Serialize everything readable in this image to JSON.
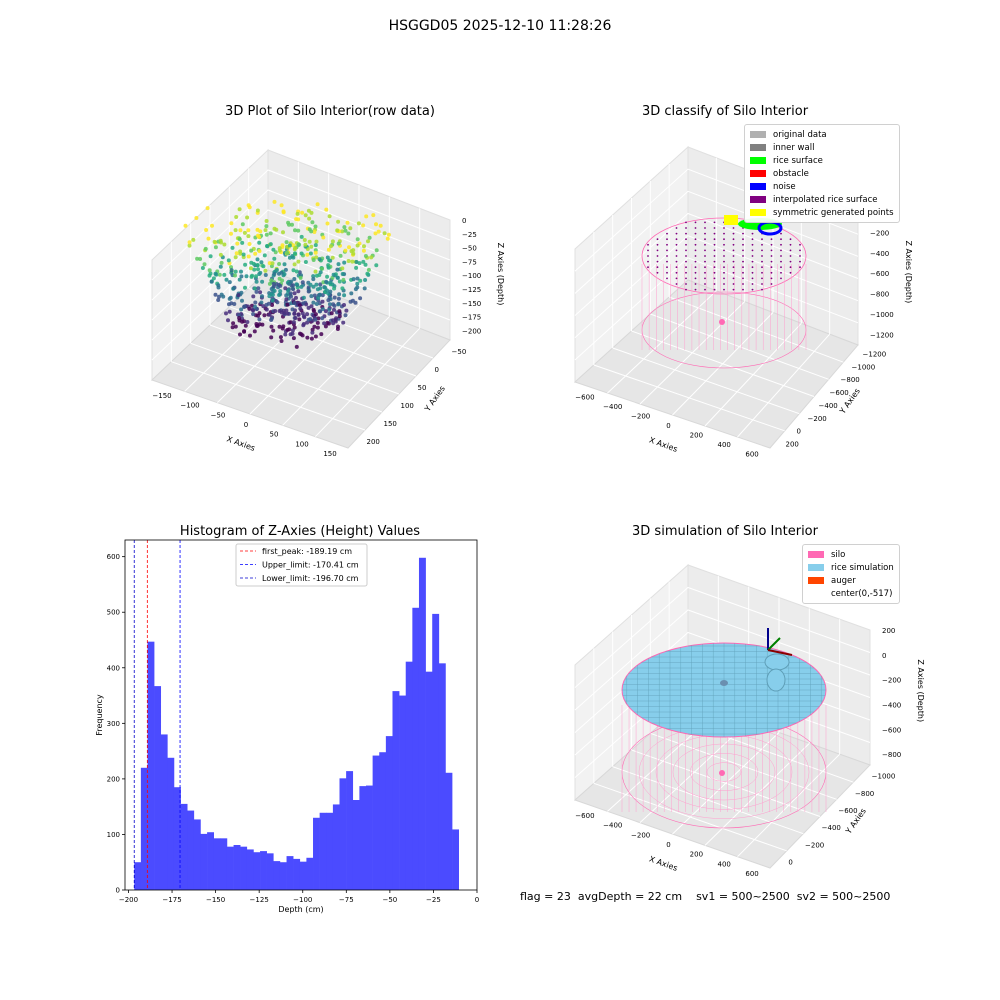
{
  "suptitle": "HSGGD05 2025-12-10 11:28:26",
  "panels": {
    "raw": {
      "title": "3D Plot of Silo Interior(row data)",
      "xlabel": "X Axies",
      "ylabel": "Y Axies",
      "zlabel": "Z Axies (Depth)",
      "xticks": [
        "−150",
        "−100",
        "−50",
        "0",
        "50",
        "100",
        "150"
      ],
      "yticks": [
        "−50",
        "0",
        "50",
        "100",
        "150",
        "200"
      ],
      "zticks": [
        "0",
        "−25",
        "−50",
        "−75",
        "−100",
        "−125",
        "−150",
        "−175",
        "−200"
      ],
      "colormap": "viridis"
    },
    "classify": {
      "title": "3D classify of Silo Interior",
      "xlabel": "X Axies",
      "ylabel": "Y Axies",
      "zlabel": "Z Axies (Depth)",
      "xticks": [
        "−600",
        "−400",
        "−200",
        "0",
        "200",
        "400",
        "600"
      ],
      "yticks": [
        "−1200",
        "−1000",
        "−800",
        "−600",
        "−400",
        "−200",
        "0",
        "200"
      ],
      "zticks": [
        "0",
        "−200",
        "−400",
        "−600",
        "−800",
        "−1000",
        "−1200"
      ],
      "legend": [
        {
          "label": "original data",
          "color": "#b0b0b0"
        },
        {
          "label": "inner wall",
          "color": "#808080"
        },
        {
          "label": "rice surface",
          "color": "#00ff00"
        },
        {
          "label": "obstacle",
          "color": "#ff0000"
        },
        {
          "label": "noise",
          "color": "#0000ff"
        },
        {
          "label": "interpolated rice surface",
          "color": "#800080"
        },
        {
          "label": "symmetric generated points",
          "color": "#ffff00"
        }
      ]
    },
    "simulation": {
      "title": "3D simulation of Silo Interior",
      "xlabel": "X Axies",
      "ylabel": "Y Axies",
      "zlabel": "Z Axies (Depth)",
      "xticks": [
        "−600",
        "−400",
        "−200",
        "0",
        "200",
        "400",
        "600"
      ],
      "yticks": [
        "−1000",
        "−800",
        "−600",
        "−400",
        "−200",
        "0"
      ],
      "zticks": [
        "200",
        "0",
        "−200",
        "−400",
        "−600",
        "−800"
      ],
      "legend": [
        {
          "label": "silo",
          "color": "#ff69b4"
        },
        {
          "label": "rice simulation",
          "color": "#87ceeb"
        },
        {
          "label": "auger",
          "color": "#ff4500"
        },
        {
          "label": "center(0,-517)",
          "color": "#ffffff"
        }
      ]
    }
  },
  "chart_data": {
    "type": "bar",
    "title": "Histogram of Z-Axies (Height) Values",
    "xlabel": "Depth (cm)",
    "ylabel": "Frequency",
    "xlim": [
      -202,
      0
    ],
    "ylim": [
      0,
      630
    ],
    "xticks": [
      -200,
      -175,
      -150,
      -125,
      -100,
      -75,
      -50,
      -25,
      0
    ],
    "xtick_labels": [
      "−200",
      "−175",
      "−150",
      "−125",
      "−100",
      "−75",
      "−50",
      "−25",
      "0"
    ],
    "yticks": [
      0,
      100,
      200,
      300,
      400,
      500,
      600
    ],
    "bin_width": 3.8,
    "bin_start": -196.7,
    "values": [
      50,
      220,
      447,
      367,
      280,
      238,
      185,
      155,
      143,
      127,
      101,
      104,
      93,
      93,
      78,
      81,
      78,
      73,
      68,
      70,
      66,
      52,
      50,
      61,
      56,
      51,
      58,
      130,
      139,
      139,
      154,
      201,
      214,
      162,
      187,
      188,
      242,
      248,
      277,
      358,
      350,
      411,
      508,
      598,
      393,
      497,
      408,
      211,
      109
    ],
    "bar_color": "#4b4bff",
    "vlines": [
      {
        "x": -189.19,
        "label": "first_peak: -189.19 cm",
        "color": "#ff0000"
      },
      {
        "x": -170.41,
        "label": "Upper_limit: -170.41 cm",
        "color": "#0000ff"
      },
      {
        "x": -196.7,
        "label": "Lower_limit: -196.70 cm",
        "color": "#0000cc"
      }
    ],
    "legend_position": "top-center"
  },
  "footer": {
    "flag": "flag = 23",
    "avg": "avgDepth = 22 cm",
    "sv1": "sv1 = 500~2500",
    "sv2": "sv2 = 500~2500"
  }
}
